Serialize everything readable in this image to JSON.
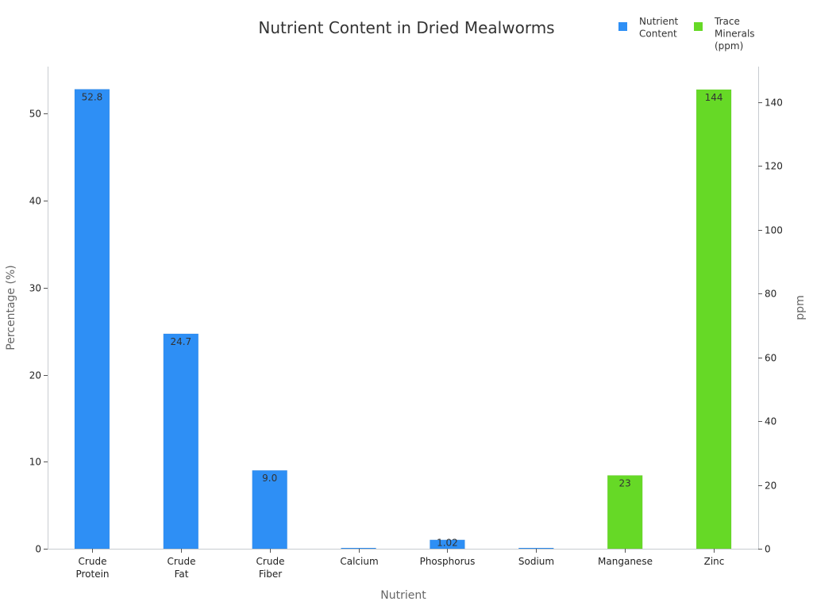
{
  "chart_data": {
    "type": "bar",
    "title": "Nutrient Content in Dried Mealworms",
    "xlabel": "Nutrient",
    "ylabel": "Percentage (%)",
    "y2label": "ppm",
    "categories": [
      "Crude\nProtein",
      "Crude\nFat",
      "Crude\nFiber",
      "Calcium",
      "Phosphorus",
      "Sodium",
      "Manganese",
      "Zinc"
    ],
    "ylim": [
      0,
      55.4
    ],
    "y2lim": [
      0,
      151.2
    ],
    "yticks": [
      0,
      10,
      20,
      30,
      40,
      50
    ],
    "y2ticks": [
      0,
      20,
      40,
      60,
      80,
      100,
      120,
      140
    ],
    "series": [
      {
        "name": "Nutrient\nContent",
        "axis": "left",
        "color": "#2e8ff5",
        "values": [
          52.8,
          24.7,
          9.0,
          0.04,
          1.02,
          0.08,
          null,
          null
        ],
        "labels": [
          "52.8",
          "24.7",
          "9.0",
          "",
          "1.02",
          "",
          "",
          ""
        ]
      },
      {
        "name": "Trace\nMinerals\n(ppm)",
        "axis": "right",
        "color": "#66d926",
        "values": [
          null,
          null,
          null,
          null,
          null,
          null,
          23,
          144
        ],
        "labels": [
          "",
          "",
          "",
          "",
          "",
          "",
          "23",
          "144"
        ]
      }
    ],
    "grid": false,
    "legend": "top-right"
  }
}
